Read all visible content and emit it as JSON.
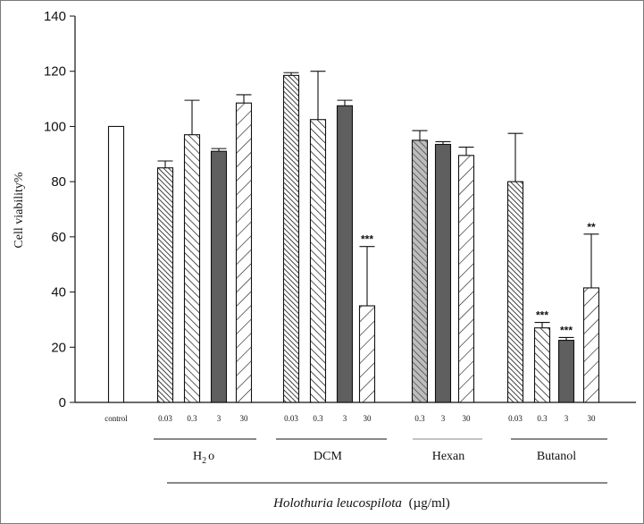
{
  "chart_data": {
    "type": "bar",
    "ylabel": "Cell viability%",
    "xlabel_italic": "Holothuria leucospilota",
    "xlabel_unit": "(µg/ml)",
    "ylim": [
      0,
      140
    ],
    "yticks": [
      0,
      20,
      40,
      60,
      80,
      100,
      120,
      140
    ],
    "groups": [
      {
        "name": "",
        "name_sub": "",
        "name_suffix": "",
        "bars": [
          {
            "label": "control",
            "value": 100,
            "error": 0,
            "sig": "",
            "fill": "white"
          }
        ]
      },
      {
        "name": "H",
        "name_sub": "2",
        "name_suffix": "o",
        "bars": [
          {
            "label": "0.03",
            "value": 85,
            "error": 2.5,
            "sig": "",
            "fill": "dense-back"
          },
          {
            "label": "0.3",
            "value": 97,
            "error": 12.5,
            "sig": "",
            "fill": "medium-back"
          },
          {
            "label": "3",
            "value": 91,
            "error": 1,
            "sig": "",
            "fill": "solid"
          },
          {
            "label": "30",
            "value": 108.5,
            "error": 3,
            "sig": "",
            "fill": "sparse-fwd"
          }
        ]
      },
      {
        "name": "DCM",
        "name_sub": "",
        "name_suffix": "",
        "bars": [
          {
            "label": "0.03",
            "value": 118.5,
            "error": 1,
            "sig": "",
            "fill": "dense-back"
          },
          {
            "label": "0.3",
            "value": 102.5,
            "error": 17.5,
            "sig": "",
            "fill": "medium-back"
          },
          {
            "label": "3",
            "value": 107.5,
            "error": 2,
            "sig": "",
            "fill": "solid"
          },
          {
            "label": "30",
            "value": 35,
            "error": 21.5,
            "sig": "***",
            "fill": "sparse-fwd"
          }
        ]
      },
      {
        "name": "Hexan",
        "name_sub": "",
        "name_suffix": "",
        "bars": [
          {
            "label": "0.3",
            "value": 95,
            "error": 3.5,
            "sig": "",
            "fill": "gray-hatch"
          },
          {
            "label": "3",
            "value": 93.5,
            "error": 1,
            "sig": "",
            "fill": "solid"
          },
          {
            "label": "30",
            "value": 89.5,
            "error": 3,
            "sig": "",
            "fill": "sparse-fwd"
          }
        ]
      },
      {
        "name": "Butanol",
        "name_sub": "",
        "name_suffix": "",
        "bars": [
          {
            "label": "0.03",
            "value": 80,
            "error": 17.5,
            "sig": "",
            "fill": "dense-back"
          },
          {
            "label": "0.3",
            "value": 27,
            "error": 2,
            "sig": "***",
            "fill": "medium-back"
          },
          {
            "label": "3",
            "value": 22.5,
            "error": 1,
            "sig": "***",
            "fill": "solid"
          },
          {
            "label": "30",
            "value": 41.5,
            "error": 19.5,
            "sig": "**",
            "fill": "sparse-fwd"
          }
        ]
      }
    ],
    "colors": {
      "solid": "#5f5f5f",
      "gray": "#bdbdbd",
      "line": "#111111"
    }
  }
}
